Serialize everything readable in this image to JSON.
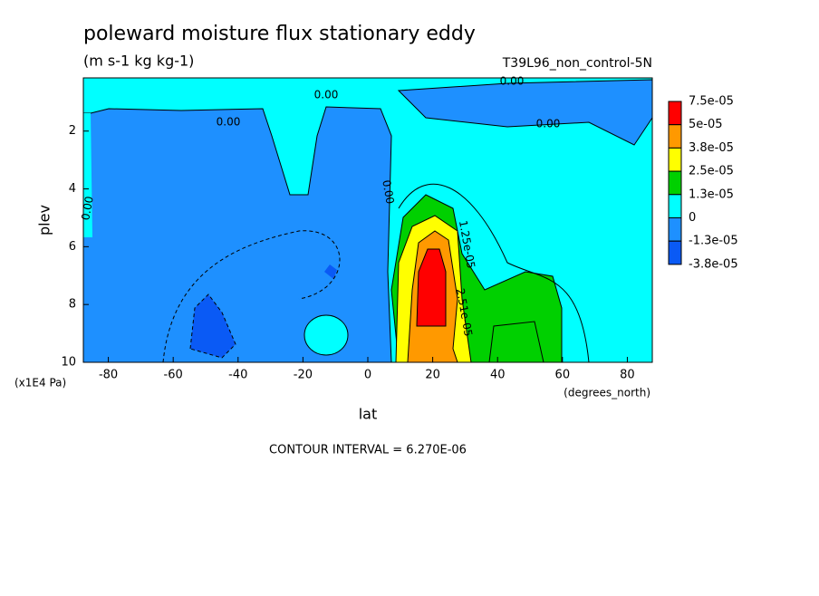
{
  "chart_data": {
    "type": "contour",
    "title": "poleward moisture flux stationary eddy",
    "subtitle": "(m s-1 kg kg-1)",
    "run_label": "T39L96_non_control-5N",
    "x_label": "lat",
    "y_label": "plev",
    "x_units": "(degrees_north)",
    "y_units": "(x1E4 Pa)",
    "footer": "CONTOUR INTERVAL = 6.270E-06",
    "xlim": [
      -87.7,
      87.7
    ],
    "ylim": [
      10,
      0.16
    ],
    "xticks": [
      -80,
      -60,
      -40,
      -20,
      0,
      20,
      40,
      60,
      80
    ],
    "yticks": [
      2,
      4,
      6,
      8,
      10
    ],
    "contour_labels": [
      "0.00",
      "0.00",
      "0.00",
      "0.00",
      "0.00",
      "0.00",
      "1.25e-05",
      "2.51e-05"
    ],
    "colorbar": {
      "levels": [
        {
          "value": 7.5e-05,
          "label": "7.5e-05"
        },
        {
          "value": 5e-05,
          "label": "5e-05"
        },
        {
          "value": 3.8e-05,
          "label": "3.8e-05"
        },
        {
          "value": 2.5e-05,
          "label": "2.5e-05"
        },
        {
          "value": 1.3e-05,
          "label": "1.3e-05"
        },
        0,
        {
          "value": -1.3e-05,
          "label": "-1.3e-05"
        },
        {
          "value": -3.8e-05,
          "label": "-3.8e-05"
        }
      ],
      "colors": [
        "#ff0000",
        "#ff9900",
        "#ffff00",
        "#00d000",
        "#00ffff",
        "#1e90ff",
        "#0a5af5"
      ]
    }
  }
}
